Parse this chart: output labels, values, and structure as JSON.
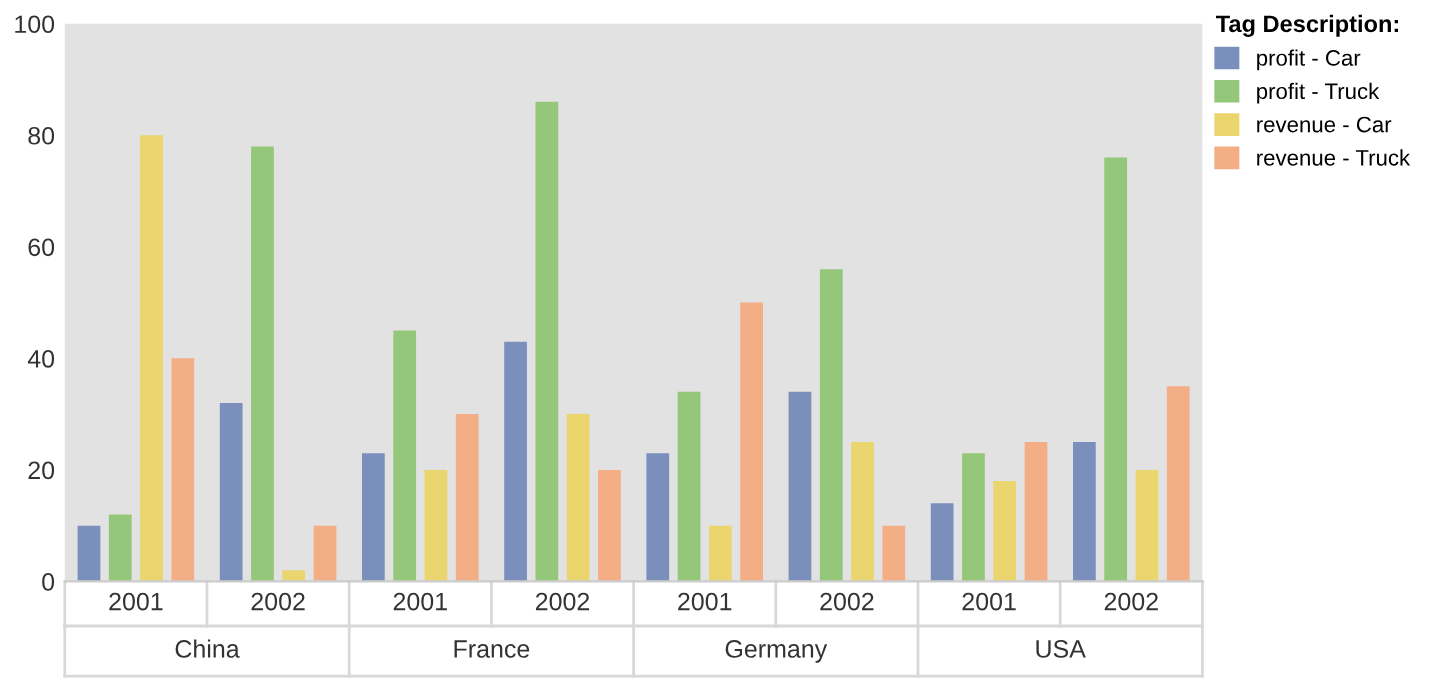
{
  "chart_data": {
    "type": "bar",
    "categories": [
      "2001",
      "2002",
      "2001",
      "2002",
      "2001",
      "2002",
      "2001",
      "2002"
    ],
    "annotations": [
      "China",
      "France",
      "Germany",
      "USA"
    ],
    "legend_title": "Tag Description:",
    "legend": "top right",
    "grid": false,
    "ylim": [
      0,
      100
    ],
    "yticks": [
      0,
      20,
      40,
      60,
      80,
      100
    ],
    "series": [
      {
        "name": "profit - Car",
        "color": "#7b8fbd",
        "values": [
          10,
          32,
          23,
          43,
          23,
          34,
          14,
          25
        ]
      },
      {
        "name": "profit - Truck",
        "color": "#94c77a",
        "values": [
          12,
          78,
          45,
          86,
          34,
          56,
          23,
          76
        ]
      },
      {
        "name": "revenue - Car",
        "color": "#ead56e",
        "values": [
          80,
          2,
          20,
          30,
          10,
          25,
          18,
          20
        ]
      },
      {
        "name": "revenue - Truck",
        "color": "#f4ae86",
        "values": [
          40,
          10,
          30,
          20,
          50,
          10,
          25,
          35
        ]
      }
    ]
  }
}
